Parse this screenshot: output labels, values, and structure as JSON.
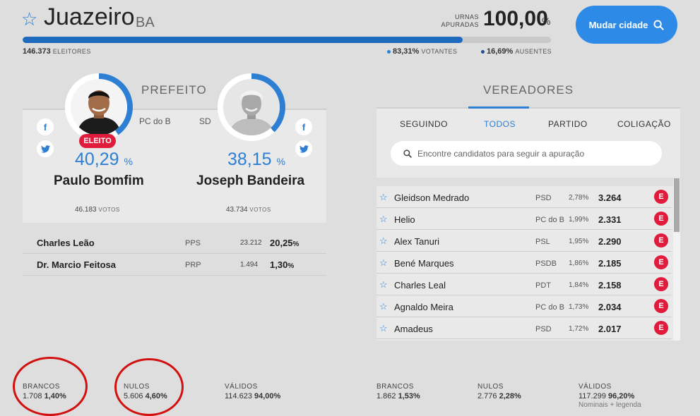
{
  "header": {
    "city": "Juazeiro",
    "state": "BA",
    "urnas_label": "URNAS APURADAS",
    "urnas_value": "100,00",
    "urnas_pct_sign": "%",
    "progress_fraction": 0.8331,
    "eleitores_value": "146.373",
    "eleitores_label": "ELEITORES",
    "votantes_value": "83,31%",
    "votantes_label": "VOTANTES",
    "ausentes_value": "16,69%",
    "ausentes_label": "AUSENTES",
    "mudar_label": "Mudar cidade",
    "colors": {
      "accent": "#2d7fd3",
      "button": "#2d8ae6",
      "elected": "#e01b3c",
      "votantes_dot": "#2d7fd3",
      "ausentes_dot": "#1b4f8c"
    }
  },
  "prefeito": {
    "title": "PREFEITO",
    "candidates": [
      {
        "name": "Paulo Bomfim",
        "party": "PC do B",
        "pct": "40,29",
        "pct_sign": "%",
        "votes": "46.183",
        "votes_label": "VOTOS",
        "badge": "ELEITO",
        "pct_fraction": 0.4029
      },
      {
        "name": "Joseph Bandeira",
        "party": "SD",
        "pct": "38,15",
        "pct_sign": "%",
        "votes": "43.734",
        "votes_label": "VOTOS",
        "pct_fraction": 0.3815
      }
    ],
    "others": [
      {
        "name": "Charles Leão",
        "party": "PPS",
        "votes": "23.212",
        "pct": "20,25",
        "pct_sign": "%"
      },
      {
        "name": "Dr. Marcio Feitosa",
        "party": "PRP",
        "votes": "1.494",
        "pct": "1,30",
        "pct_sign": "%"
      }
    ]
  },
  "vereadores": {
    "title": "VEREADORES",
    "tabs": [
      "SEGUINDO",
      "TODOS",
      "PARTIDO",
      "COLIGAÇÃO"
    ],
    "search_placeholder": "Encontre candidatos para seguir a apuração",
    "rows": [
      {
        "name": "Gleidson Medrado",
        "party": "PSD",
        "pct": "2,78%",
        "votes": "3.264",
        "badge": "E"
      },
      {
        "name": "Helio",
        "party": "PC do B",
        "pct": "1,99%",
        "votes": "2.331",
        "badge": "E"
      },
      {
        "name": "Alex Tanuri",
        "party": "PSL",
        "pct": "1,95%",
        "votes": "2.290",
        "badge": "E"
      },
      {
        "name": "Bené Marques",
        "party": "PSDB",
        "pct": "1,86%",
        "votes": "2.185",
        "badge": "E"
      },
      {
        "name": "Charles Leal",
        "party": "PDT",
        "pct": "1,84%",
        "votes": "2.158",
        "badge": "E"
      },
      {
        "name": "Agnaldo Meira",
        "party": "PC do B",
        "pct": "1,73%",
        "votes": "2.034",
        "badge": "E"
      },
      {
        "name": "Amadeus",
        "party": "PSD",
        "pct": "1,72%",
        "votes": "2.017",
        "badge": "E"
      }
    ]
  },
  "footer": {
    "prefeito": {
      "brancos": {
        "label": "BRANCOS",
        "value": "1.708",
        "pct": "1,40%"
      },
      "nulos": {
        "label": "NULOS",
        "value": "5.606",
        "pct": "4,60%"
      },
      "validos": {
        "label": "VÁLIDOS",
        "value": "114.623",
        "pct": "94,00%"
      }
    },
    "vereadores": {
      "brancos": {
        "label": "BRANCOS",
        "value": "1.862",
        "pct": "1,53%"
      },
      "nulos": {
        "label": "NULOS",
        "value": "2.776",
        "pct": "2,28%"
      },
      "validos": {
        "label": "VÁLIDOS",
        "value": "117.299",
        "pct": "96,20%",
        "note": "Nominais + legenda"
      }
    }
  },
  "icons": [
    "star-icon",
    "search-icon",
    "facebook-icon",
    "twitter-icon"
  ]
}
